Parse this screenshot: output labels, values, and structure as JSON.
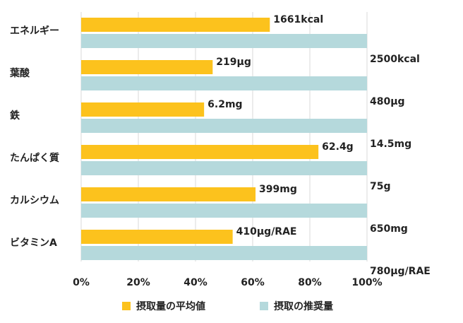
{
  "chart_data": {
    "type": "bar",
    "orientation": "horizontal",
    "categories": [
      "エネルギー",
      "葉酸",
      "鉄",
      "たんぱく質",
      "カルシウム",
      "ビタミンA"
    ],
    "series": [
      {
        "name": "摂取量の平均値",
        "color": "#FCC21D",
        "values": [
          66,
          46,
          43,
          83,
          61,
          53
        ],
        "labels": [
          "1661kcal",
          "219μg",
          "6.2mg",
          "62.4g",
          "399mg",
          "410μg/RAE"
        ]
      },
      {
        "name": "摂取の推奨量",
        "color": "#B5D9DC",
        "values": [
          100,
          100,
          100,
          100,
          100,
          100
        ],
        "labels": [
          "2500kcal",
          "480μg",
          "14.5mg",
          "75g",
          "650mg",
          "780μg/RAE"
        ]
      }
    ],
    "xlim": [
      0,
      100
    ],
    "xticks": [
      "0%",
      "20%",
      "40%",
      "60%",
      "80%",
      "100%"
    ],
    "grid": true,
    "legend_position": "bottom"
  }
}
